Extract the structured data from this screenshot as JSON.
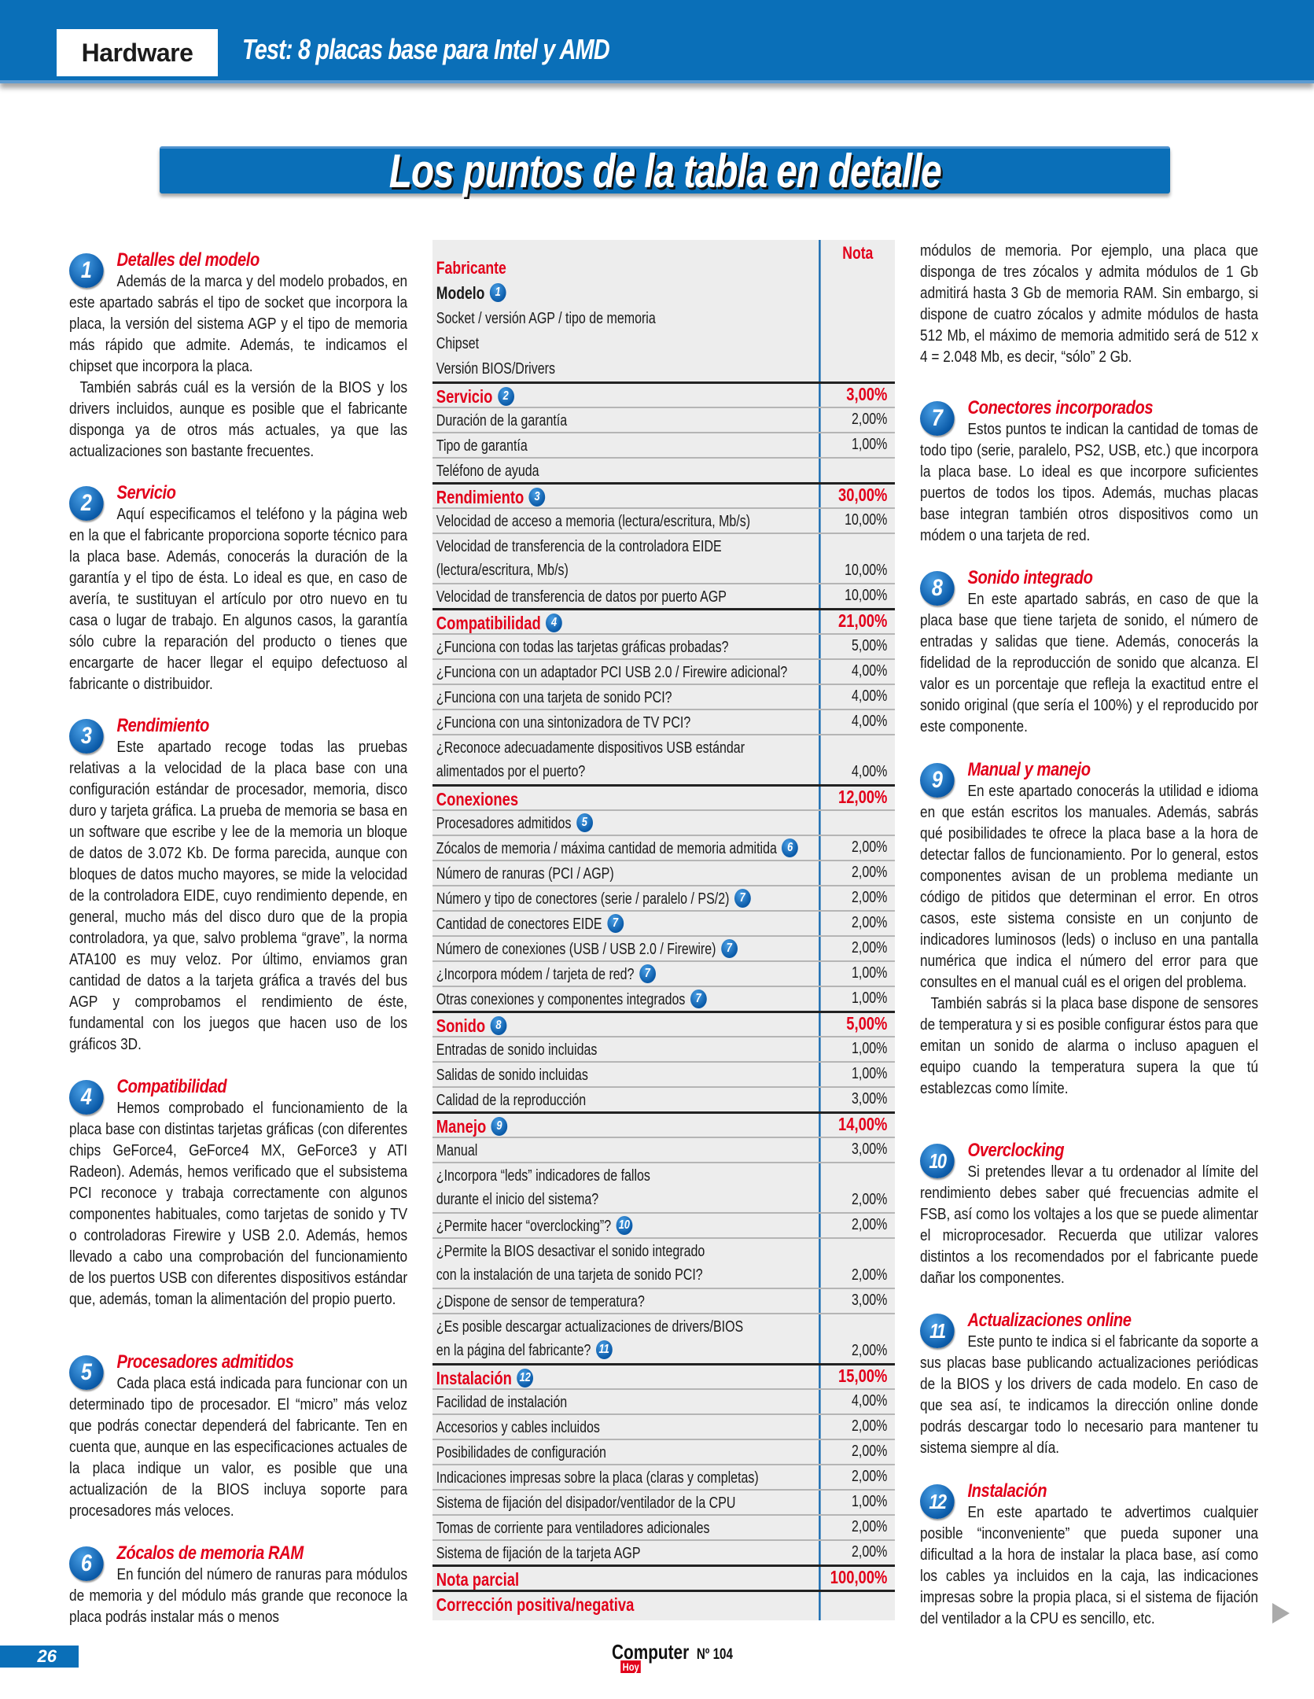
{
  "header": {
    "section": "Hardware",
    "title": "Test: 8 placas base para Intel y AMD"
  },
  "banner": {
    "title": "Los puntos de la tabla en detalle"
  },
  "colors": {
    "brand_blue": "#0a6fb8",
    "accent_red": "#e2001a"
  },
  "left_sections": [
    {
      "num": "1",
      "title": "Detalles del modelo",
      "paragraphs": [
        "Además de la marca y del modelo probados, en este apartado sabrás el tipo de socket que incorpora la placa, la versión del sistema  AGP y el tipo de memoria más rápido que admite. Además, te indicamos el chipset que incorpora la placa.",
        "También sabrás cuál es la versión de la BIOS y los drivers incluidos, aunque es posible que el fabricante disponga ya de otros más actuales, ya que las actualizaciones son bastante frecuentes."
      ]
    },
    {
      "num": "2",
      "title": "Servicio",
      "paragraphs": [
        "Aquí especificamos el teléfono y la página web en la que el fabricante proporciona soporte técnico para la placa base. Además, conocerás la duración de la garantía y el tipo de ésta. Lo ideal es que, en caso de avería, te sustituyan el artículo por otro nuevo en tu casa o lugar de trabajo. En algunos casos, la garantía sólo cubre la reparación del producto o tienes que encargarte de hacer llegar el equipo defectuoso al fabricante o distribuidor."
      ]
    },
    {
      "num": "3",
      "title": "Rendimiento",
      "paragraphs": [
        "Este apartado recoge todas las pruebas relativas a la velocidad de la placa base con una configuración estándar de procesador, memoria, disco duro y tarjeta gráfica. La prueba de memoria se basa en un software que escribe y lee de la memoria un bloque de datos de 3.072 Kb. De forma parecida, aunque con bloques de datos mucho mayores, se mide la velocidad de la controladora EIDE, cuyo rendimiento depende, en general, mucho más del disco duro que de la propia controladora, ya que, salvo problema “grave”, la norma ATA100 es muy veloz. Por último, enviamos gran cantidad de datos a la tarjeta gráfica a través del bus AGP y comprobamos el rendimiento de éste, fundamental con los juegos que hacen uso de los gráficos 3D."
      ]
    },
    {
      "num": "4",
      "title": "Compatibilidad",
      "paragraphs": [
        "Hemos comprobado el funcionamiento de la placa base con distintas tarjetas gráficas (con diferentes chips GeForce4, GeForce4 MX, GeForce3 y ATI Radeon). Además, hemos verificado que el subsistema PCI reconoce y trabaja correctamente con algunos componentes habituales, como tarjetas de sonido y TV o controladoras Firewire y USB 2.0. Además, hemos llevado a cabo una comprobación del funcionamiento de los puertos USB con diferentes dispositivos estándar que, además, toman la alimentación del propio puerto."
      ]
    },
    {
      "num": "5",
      "title": "Procesadores admitidos",
      "paragraphs": [
        "Cada placa está indicada para funcionar con un determinado tipo de procesador. El “micro” más veloz que podrás conectar dependerá del fabricante. Ten en cuenta que, aunque en las especificaciones actuales de la placa indique un valor, es posible que una actualización de la BIOS incluya soporte para procesadores más veloces."
      ]
    },
    {
      "num": "6",
      "title": "Zócalos de memoria RAM",
      "paragraphs": [
        "En función del número de ranuras para módulos de memoria y del módulo más grande que reconoce la placa podrás instalar más o menos"
      ]
    }
  ],
  "right_intro": "módulos de memoria. Por ejemplo, una placa que disponga de tres zócalos y admita módulos de 1 Gb admitirá hasta 3 Gb de memoria RAM. Sin embargo, si dispone de cuatro zócalos y admite módulos de hasta 512 Mb, el máximo de memoria admitido será de 512 x 4 = 2.048 Mb, es decir, “sólo” 2 Gb.",
  "right_sections": [
    {
      "num": "7",
      "title": "Conectores incorporados",
      "paragraphs": [
        "Estos puntos te indican la cantidad de tomas de todo tipo (serie, paralelo, PS2, USB, etc.) que incorpora la placa base. Lo ideal es que incorpore suficientes puertos de todos los tipos. Además, muchas placas base integran también otros dispositivos como un módem o una tarjeta de red."
      ]
    },
    {
      "num": "8",
      "title": "Sonido integrado",
      "paragraphs": [
        "En este apartado sabrás, en caso de que la placa base que tiene tarjeta de sonido, el número de entradas y salidas que tiene. Además, conocerás la fidelidad de la reproducción de sonido que alcanza. El valor es un porcentaje que refleja la exactitud entre el sonido original (que sería el 100%) y el reproducido por este componente."
      ]
    },
    {
      "num": "9",
      "title": "Manual y manejo",
      "paragraphs": [
        "En este apartado conocerás la utilidad e idioma en que están escritos los manuales. Además, sabrás qué posibilidades te ofrece la placa base a la hora de detectar fallos de funcionamiento. Por lo general, estos componentes avisan de un problema mediante un código de pitidos que determinan el error. En otros casos, este sistema consiste en un conjunto de indicadores luminosos (leds) o incluso en una pantalla numérica que indica el número del error para que consultes en el manual cuál es el origen del problema.",
        "También sabrás si la placa base dispone de sensores de temperatura y si es posible configurar éstos para que emitan un sonido de alarma o incluso apaguen el equipo cuando la temperatura supera la que tú establezcas como límite."
      ]
    },
    {
      "num": "10",
      "title": "Overclocking",
      "paragraphs": [
        "Si pretendes llevar a tu ordenador al límite del rendimiento debes saber qué frecuencias admite el FSB, así como los voltajes a los que se puede alimentar el microprocesador. Recuerda que utilizar valores distintos a los recomendados por el fabricante puede dañar los componentes."
      ]
    },
    {
      "num": "11",
      "title": "Actualizaciones online",
      "paragraphs": [
        "Este punto te indica si el fabricante da soporte a sus placas base publicando actualizaciones periódicas de la BIOS y los drivers de cada modelo. En caso de que sea así, te indicamos la dirección online donde podrás descargar todo lo necesario para mantener tu sistema siempre al día."
      ]
    },
    {
      "num": "12",
      "title": "Instalación",
      "paragraphs": [
        "En este apartado te advertimos cualquier posible “inconveniente” que pueda suponer una dificultad a la hora de instalar la placa base, así como los cables ya incluidos en la caja, las indicaciones impresas sobre la propia placa, si el sistema de fijación del ventilador a la CPU es sencillo, etc."
      ]
    }
  ],
  "table": {
    "nota_header": "Nota",
    "fabricante": "Fabricante",
    "modelo": "Modelo",
    "modelo_badge": "1",
    "header_lines": [
      "Socket / versión AGP / tipo de memoria",
      "Chipset",
      "Versión BIOS/Drivers"
    ],
    "rows": [
      {
        "section": true,
        "lines": [
          "Servicio"
        ],
        "badge": "2",
        "value": "3,00%"
      },
      {
        "lines": [
          "Duración de la garantía"
        ],
        "value": "2,00%"
      },
      {
        "lines": [
          "Tipo de garantía"
        ],
        "value": "1,00%"
      },
      {
        "lines": [
          "Teléfono de ayuda"
        ],
        "value": ""
      },
      {
        "section": true,
        "lines": [
          "Rendimiento"
        ],
        "badge": "3",
        "value": "30,00%"
      },
      {
        "lines": [
          "Velocidad de acceso a memoria (lectura/escritura, Mb/s)"
        ],
        "value": "10,00%"
      },
      {
        "lines": [
          "Velocidad de transferencia de la controladora EIDE",
          "(lectura/escritura, Mb/s)"
        ],
        "value": "10,00%"
      },
      {
        "lines": [
          "Velocidad de transferencia de datos por puerto AGP"
        ],
        "value": "10,00%"
      },
      {
        "section": true,
        "lines": [
          "Compatibilidad"
        ],
        "badge": "4",
        "value": "21,00%"
      },
      {
        "lines": [
          "¿Funciona con todas las tarjetas gráficas probadas?"
        ],
        "value": "5,00%"
      },
      {
        "lines": [
          "¿Funciona con un adaptador PCI USB 2.0 / Firewire adicional?"
        ],
        "value": "4,00%"
      },
      {
        "lines": [
          "¿Funciona con una tarjeta de sonido PCI?"
        ],
        "value": "4,00%"
      },
      {
        "lines": [
          "¿Funciona con una sintonizadora de TV PCI?"
        ],
        "value": "4,00%"
      },
      {
        "lines": [
          "¿Reconoce adecuadamente dispositivos USB estándar",
          "alimentados por el puerto?"
        ],
        "value": "4,00%"
      },
      {
        "section": true,
        "lines": [
          "Conexiones"
        ],
        "value": "12,00%"
      },
      {
        "lines": [
          "Procesadores admitidos"
        ],
        "badge": "5",
        "value": ""
      },
      {
        "lines": [
          "Zócalos de memoria / máxima cantidad de memoria admitida"
        ],
        "badge": "6",
        "value": "2,00%"
      },
      {
        "lines": [
          "Número de ranuras (PCI / AGP)"
        ],
        "value": "2,00%"
      },
      {
        "lines": [
          "Número y tipo de conectores (serie / paralelo / PS/2)"
        ],
        "badge": "7",
        "value": "2,00%"
      },
      {
        "lines": [
          "Cantidad de conectores EIDE"
        ],
        "badge": "7",
        "value": "2,00%"
      },
      {
        "lines": [
          "Número de conexiones (USB / USB 2.0 / Firewire)"
        ],
        "badge": "7",
        "value": "2,00%"
      },
      {
        "lines": [
          "¿Incorpora módem / tarjeta de red?"
        ],
        "badge": "7",
        "value": "1,00%"
      },
      {
        "lines": [
          "Otras conexiones y componentes integrados"
        ],
        "badge": "7",
        "value": "1,00%"
      },
      {
        "section": true,
        "lines": [
          "Sonido"
        ],
        "badge": "8",
        "value": "5,00%"
      },
      {
        "lines": [
          "Entradas de sonido incluidas"
        ],
        "value": "1,00%"
      },
      {
        "lines": [
          "Salidas de sonido incluidas"
        ],
        "value": "1,00%"
      },
      {
        "lines": [
          "Calidad de la reproducción"
        ],
        "value": "3,00%"
      },
      {
        "section": true,
        "lines": [
          "Manejo"
        ],
        "badge": "9",
        "value": "14,00%"
      },
      {
        "lines": [
          "Manual"
        ],
        "value": "3,00%"
      },
      {
        "lines": [
          "¿Incorpora “leds” indicadores de fallos",
          "durante el inicio del sistema?"
        ],
        "value": "2,00%"
      },
      {
        "lines": [
          "¿Permite hacer “overclocking”?"
        ],
        "badge": "10",
        "value": "2,00%"
      },
      {
        "lines": [
          "¿Permite la BIOS desactivar el sonido integrado",
          "con la instalación de una tarjeta de sonido PCI?"
        ],
        "value": "2,00%"
      },
      {
        "lines": [
          "¿Dispone de sensor de temperatura?"
        ],
        "value": "3,00%"
      },
      {
        "lines": [
          "¿Es posible descargar actualizaciones de drivers/BIOS",
          "en la página del fabricante?"
        ],
        "badge": "11",
        "value": "2,00%"
      },
      {
        "section": true,
        "lines": [
          "Instalación"
        ],
        "badge": "12",
        "value": "15,00%"
      },
      {
        "lines": [
          "Facilidad de instalación"
        ],
        "value": "4,00%"
      },
      {
        "lines": [
          "Accesorios y cables incluidos"
        ],
        "value": "2,00%"
      },
      {
        "lines": [
          "Posibilidades de configuración"
        ],
        "value": "2,00%"
      },
      {
        "lines": [
          "Indicaciones impresas sobre la placa (claras y completas)"
        ],
        "value": "2,00%"
      },
      {
        "lines": [
          "Sistema de fijación del disipador/ventilador de la CPU"
        ],
        "value": "1,00%"
      },
      {
        "lines": [
          "Tomas de corriente para ventiladores adicionales"
        ],
        "value": "2,00%"
      },
      {
        "lines": [
          "Sistema de fijación de la tarjeta AGP"
        ],
        "value": "2,00%"
      },
      {
        "section": true,
        "lines": [
          "Nota parcial"
        ],
        "value": "100,00%"
      },
      {
        "section": true,
        "lines": [
          "Corrección positiva/negativa"
        ],
        "value": ""
      }
    ]
  },
  "footer": {
    "page_number": "26",
    "logo_main": "Computer",
    "logo_sub": "Hoy",
    "issue": "Nº 104"
  }
}
